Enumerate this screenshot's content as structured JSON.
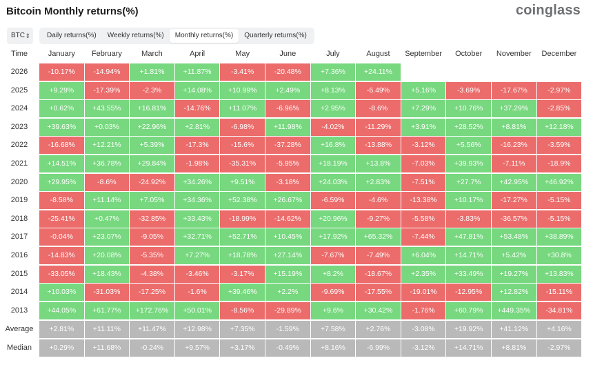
{
  "title": "Bitcoin Monthly returns(%)",
  "logo": "coinglass",
  "asset_select": {
    "value": "BTC",
    "chevron": "⌃⌄"
  },
  "tabs": [
    {
      "label": "Daily returns(%)",
      "active": false
    },
    {
      "label": "Weekly returns(%)",
      "active": false
    },
    {
      "label": "Monthly returns(%)",
      "active": true
    },
    {
      "label": "Quarterly returns(%)",
      "active": false
    }
  ],
  "colors": {
    "positive": "#77d87f",
    "negative": "#eb6c6b",
    "stat": "#b9b9b9"
  },
  "table": {
    "header_time": "Time",
    "months": [
      "January",
      "February",
      "March",
      "April",
      "May",
      "June",
      "July",
      "August",
      "September",
      "October",
      "November",
      "December"
    ],
    "rows": [
      {
        "label": "2026",
        "values": [
          "-10.17%",
          "-14.94%",
          "+1.81%",
          "+11.87%",
          "-3.41%",
          "-20.48%",
          "+7.36%",
          "+24.11%",
          "",
          "",
          "",
          ""
        ]
      },
      {
        "label": "2025",
        "values": [
          "+9.29%",
          "-17.39%",
          "-2.3%",
          "+14.08%",
          "+10.99%",
          "+2.49%",
          "+8.13%",
          "-6.49%",
          "+5.16%",
          "-3.69%",
          "-17.67%",
          "-2.97%"
        ]
      },
      {
        "label": "2024",
        "values": [
          "+0.62%",
          "+43.55%",
          "+16.81%",
          "-14.76%",
          "+11.07%",
          "-6.96%",
          "+2.95%",
          "-8.6%",
          "+7.29%",
          "+10.76%",
          "+37.29%",
          "-2.85%"
        ]
      },
      {
        "label": "2023",
        "values": [
          "+39.63%",
          "+0.03%",
          "+22.96%",
          "+2.81%",
          "-6.98%",
          "+11.98%",
          "-4.02%",
          "-11.29%",
          "+3.91%",
          "+28.52%",
          "+8.81%",
          "+12.18%"
        ]
      },
      {
        "label": "2022",
        "values": [
          "-16.68%",
          "+12.21%",
          "+5.39%",
          "-17.3%",
          "-15.6%",
          "-37.28%",
          "+16.8%",
          "-13.88%",
          "-3.12%",
          "+5.56%",
          "-16.23%",
          "-3.59%"
        ]
      },
      {
        "label": "2021",
        "values": [
          "+14.51%",
          "+36.78%",
          "+29.84%",
          "-1.98%",
          "-35.31%",
          "-5.95%",
          "+18.19%",
          "+13.8%",
          "-7.03%",
          "+39.93%",
          "-7.11%",
          "-18.9%"
        ]
      },
      {
        "label": "2020",
        "values": [
          "+29.95%",
          "-8.6%",
          "-24.92%",
          "+34.26%",
          "+9.51%",
          "-3.18%",
          "+24.03%",
          "+2.83%",
          "-7.51%",
          "+27.7%",
          "+42.95%",
          "+46.92%"
        ]
      },
      {
        "label": "2019",
        "values": [
          "-8.58%",
          "+11.14%",
          "+7.05%",
          "+34.36%",
          "+52.38%",
          "+26.67%",
          "-6.59%",
          "-4.6%",
          "-13.38%",
          "+10.17%",
          "-17.27%",
          "-5.15%"
        ]
      },
      {
        "label": "2018",
        "values": [
          "-25.41%",
          "+0.47%",
          "-32.85%",
          "+33.43%",
          "-18.99%",
          "-14.62%",
          "+20.96%",
          "-9.27%",
          "-5.58%",
          "-3.83%",
          "-36.57%",
          "-5.15%"
        ]
      },
      {
        "label": "2017",
        "values": [
          "-0.04%",
          "+23.07%",
          "-9.05%",
          "+32.71%",
          "+52.71%",
          "+10.45%",
          "+17.92%",
          "+65.32%",
          "-7.44%",
          "+47.81%",
          "+53.48%",
          "+38.89%"
        ]
      },
      {
        "label": "2016",
        "values": [
          "-14.83%",
          "+20.08%",
          "-5.35%",
          "+7.27%",
          "+18.78%",
          "+27.14%",
          "-7.67%",
          "-7.49%",
          "+6.04%",
          "+14.71%",
          "+5.42%",
          "+30.8%"
        ]
      },
      {
        "label": "2015",
        "values": [
          "-33.05%",
          "+18.43%",
          "-4.38%",
          "-3.46%",
          "-3.17%",
          "+15.19%",
          "+8.2%",
          "-18.67%",
          "+2.35%",
          "+33.49%",
          "+19.27%",
          "+13.83%"
        ]
      },
      {
        "label": "2014",
        "values": [
          "+10.03%",
          "-31.03%",
          "-17.25%",
          "-1.6%",
          "+39.46%",
          "+2.2%",
          "-9.69%",
          "-17.55%",
          "-19.01%",
          "-12.95%",
          "+12.82%",
          "-15.11%"
        ]
      },
      {
        "label": "2013",
        "values": [
          "+44.05%",
          "+61.77%",
          "+172.76%",
          "+50.01%",
          "-8.56%",
          "-29.89%",
          "+9.6%",
          "+30.42%",
          "-1.76%",
          "+60.79%",
          "+449.35%",
          "-34.81%"
        ]
      }
    ],
    "stats": [
      {
        "label": "Average",
        "values": [
          "+2.81%",
          "+11.11%",
          "+11.47%",
          "+12.98%",
          "+7.35%",
          "-1.59%",
          "+7.58%",
          "+2.76%",
          "-3.08%",
          "+19.92%",
          "+41.12%",
          "+4.16%"
        ]
      },
      {
        "label": "Median",
        "values": [
          "+0.29%",
          "+11.68%",
          "-0.24%",
          "+9.57%",
          "+3.17%",
          "-0.49%",
          "+8.16%",
          "-6.99%",
          "-3.12%",
          "+14.71%",
          "+8.81%",
          "-2.97%"
        ]
      }
    ]
  }
}
